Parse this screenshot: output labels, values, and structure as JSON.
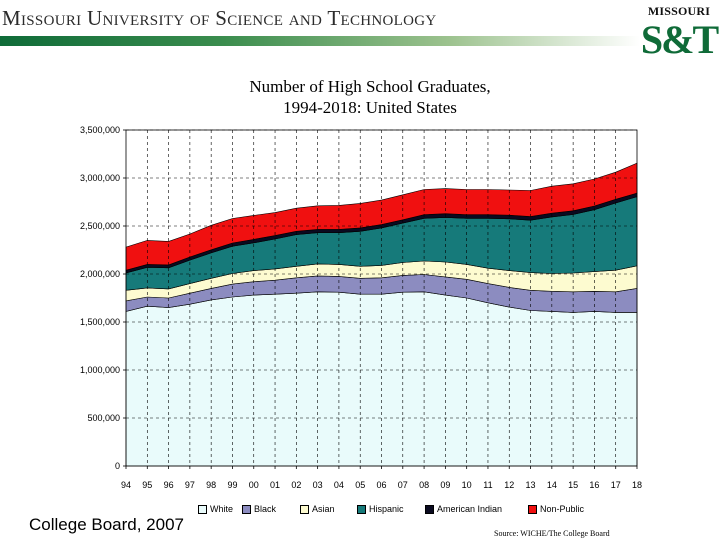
{
  "header": {
    "title_words": [
      {
        "first": "M",
        "rest": "issouri"
      },
      {
        "first": "U",
        "rest": "niversity"
      },
      {
        "first": "",
        "rest": "of"
      },
      {
        "first": "S",
        "rest": "cience"
      },
      {
        "first": "",
        "rest": "and"
      },
      {
        "first": "T",
        "rest": "echnology"
      }
    ],
    "logo_top": "MISSOURI",
    "logo_main": "S&T"
  },
  "footer": {
    "left": "College Board, 2007",
    "source": "Source: WICHE/The College Board"
  },
  "colors": {
    "White": "#e9fbfb",
    "Black": "#8c8cc0",
    "Asian": "#fdfbd0",
    "Hispanic": "#167a7a",
    "American Indian": "#0a0a20",
    "Non-Public": "#f01010"
  },
  "chart_data": {
    "type": "area",
    "stacked": true,
    "title": [
      "Number of High School Graduates,",
      "1994-2018:  United States"
    ],
    "xlabel": "",
    "ylabel": "",
    "ylim": [
      0,
      3500000
    ],
    "y_ticks": [
      "0",
      "500,000",
      "1,000,000",
      "1,500,000",
      "2,000,000",
      "2,500,000",
      "3,000,000",
      "3,500,000"
    ],
    "categories": [
      "94",
      "95",
      "96",
      "97",
      "98",
      "99",
      "00",
      "01",
      "02",
      "03",
      "04",
      "05",
      "06",
      "07",
      "08",
      "09",
      "10",
      "11",
      "12",
      "13",
      "14",
      "15",
      "16",
      "17",
      "18"
    ],
    "grid": true,
    "legend_position": "bottom",
    "series": [
      {
        "name": "White",
        "values": [
          1610000,
          1665000,
          1650000,
          1685000,
          1730000,
          1760000,
          1780000,
          1790000,
          1800000,
          1815000,
          1810000,
          1790000,
          1790000,
          1810000,
          1815000,
          1780000,
          1750000,
          1700000,
          1655000,
          1620000,
          1610000,
          1600000,
          1610000,
          1600000,
          1600000
        ]
      },
      {
        "name": "Black",
        "values": [
          110000,
          95000,
          100000,
          115000,
          120000,
          135000,
          140000,
          145000,
          160000,
          165000,
          165000,
          165000,
          170000,
          175000,
          180000,
          190000,
          195000,
          200000,
          205000,
          210000,
          210000,
          215000,
          210000,
          215000,
          250000
        ]
      },
      {
        "name": "Asian",
        "values": [
          110000,
          95000,
          95000,
          100000,
          105000,
          110000,
          115000,
          118000,
          120000,
          125000,
          125000,
          125000,
          130000,
          135000,
          140000,
          155000,
          155000,
          160000,
          175000,
          185000,
          185000,
          195000,
          205000,
          225000,
          235000
        ]
      },
      {
        "name": "Hispanic",
        "values": [
          180000,
          215000,
          220000,
          245000,
          265000,
          285000,
          290000,
          312000,
          330000,
          325000,
          330000,
          365000,
          390000,
          410000,
          445000,
          465000,
          480000,
          520000,
          540000,
          545000,
          590000,
          610000,
          645000,
          700000,
          720000
        ]
      },
      {
        "name": "American Indian",
        "values": [
          30000,
          30000,
          30000,
          32000,
          32000,
          33000,
          35000,
          35000,
          35000,
          35000,
          35000,
          35000,
          35000,
          35000,
          38000,
          38000,
          38000,
          38000,
          38000,
          38000,
          38000,
          38000,
          38000,
          38000,
          38000
        ]
      },
      {
        "name": "Non-Public",
        "values": [
          240000,
          250000,
          245000,
          240000,
          255000,
          255000,
          250000,
          240000,
          240000,
          245000,
          250000,
          255000,
          255000,
          260000,
          262000,
          262000,
          262000,
          262000,
          262000,
          272000,
          282000,
          282000,
          282000,
          282000,
          312000
        ]
      }
    ]
  }
}
